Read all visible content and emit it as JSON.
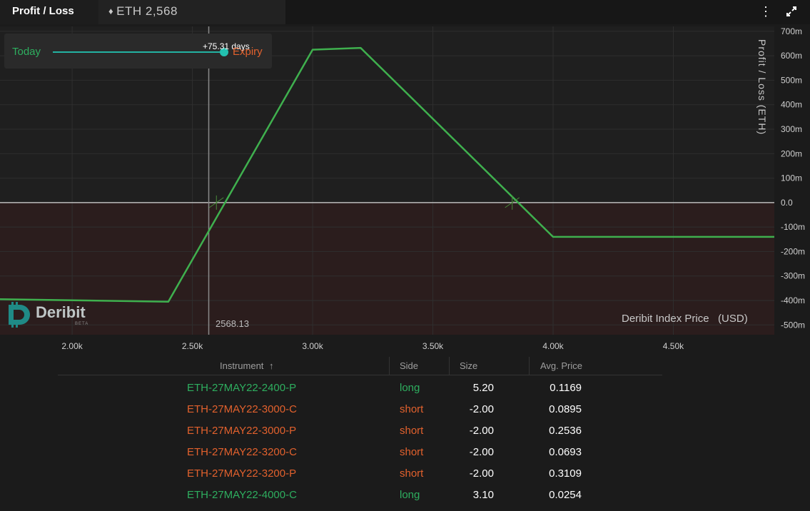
{
  "header": {
    "tab_title": "Profit / Loss",
    "asset_label": "ETH 2,568"
  },
  "legend": {
    "today": "Today",
    "expiry": "Expiry",
    "days": "+75.31 days",
    "slider_fraction": 1.0
  },
  "cursor": {
    "price_label": "2568.13"
  },
  "chart_data": {
    "type": "line",
    "ylabel": "Profit / Loss  (ETH)",
    "xlabel": "Deribit Index Price   (USD)",
    "x_ticks": [
      "2.00k",
      "2.50k",
      "3.00k",
      "3.50k",
      "4.00k",
      "4.50k"
    ],
    "y_ticks": [
      "700m",
      "600m",
      "500m",
      "400m",
      "300m",
      "200m",
      "100m",
      "0.0",
      "-100m",
      "-200m",
      "-300m",
      "-400m",
      "-500m"
    ],
    "x_range": [
      1700,
      4920
    ],
    "y_range": [
      -0.54,
      0.72
    ],
    "cursor_x": 2568.13,
    "series": [
      {
        "x": [
          1700,
          2400,
          3000,
          3200,
          4000,
          4920
        ],
        "y": [
          -0.395,
          -0.405,
          0.625,
          0.632,
          -0.14,
          -0.14
        ]
      }
    ],
    "breakeven_x": [
      2600,
      3830
    ],
    "colors": {
      "line": "#3fb04e",
      "negative_bg": "#2b1d1d",
      "zero_line": "#bdbdbd"
    }
  },
  "logo": {
    "name": "Deribit",
    "badge": "BETA"
  },
  "table": {
    "columns": [
      "Instrument",
      "Side",
      "Size",
      "Avg. Price"
    ],
    "sort_icon": "arrow-up-icon",
    "rows": [
      {
        "instrument": "ETH-27MAY22-2400-P",
        "side": "long",
        "size": "5.20",
        "avg_price": "0.1169"
      },
      {
        "instrument": "ETH-27MAY22-3000-C",
        "side": "short",
        "size": "-2.00",
        "avg_price": "0.0895"
      },
      {
        "instrument": "ETH-27MAY22-3000-P",
        "side": "short",
        "size": "-2.00",
        "avg_price": "0.2536"
      },
      {
        "instrument": "ETH-27MAY22-3200-C",
        "side": "short",
        "size": "-2.00",
        "avg_price": "0.0693"
      },
      {
        "instrument": "ETH-27MAY22-3200-P",
        "side": "short",
        "size": "-2.00",
        "avg_price": "0.3109"
      },
      {
        "instrument": "ETH-27MAY22-4000-C",
        "side": "long",
        "size": "3.10",
        "avg_price": "0.0254"
      }
    ]
  }
}
